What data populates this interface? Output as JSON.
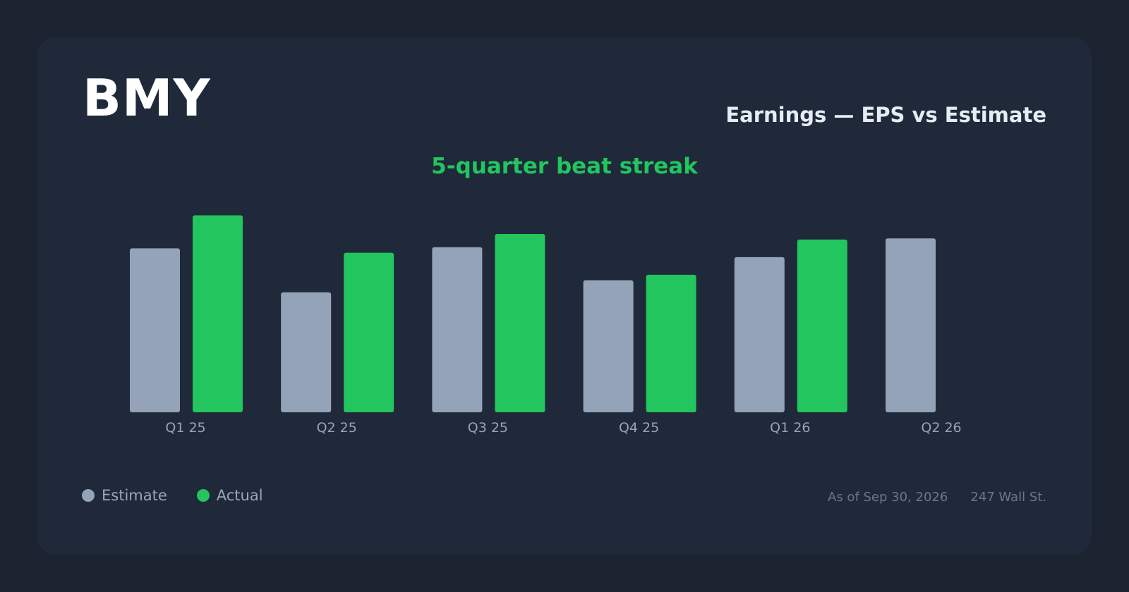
{
  "header": {
    "ticker": "BMY",
    "title": "Earnings — EPS vs Estimate",
    "subtitle": "5-quarter beat streak"
  },
  "colors": {
    "estimate": "#94a3b8",
    "actual": "#22c55e",
    "background": "#1b2230",
    "card": "#1f293a"
  },
  "legend": {
    "estimate_label": "Estimate",
    "actual_label": "Actual"
  },
  "footer": {
    "as_of": "As of Sep 30, 2026",
    "source": "247 Wall St."
  },
  "chart_data": {
    "type": "bar",
    "title": "Earnings — EPS vs Estimate",
    "subtitle": "5-quarter beat streak",
    "categories": [
      "Q1 25",
      "Q2 25",
      "Q3 25",
      "Q4 25",
      "Q1 26",
      "Q2 26"
    ],
    "series": [
      {
        "name": "Estimate",
        "color": "#94a3b8",
        "values": [
          1.49,
          1.09,
          1.5,
          1.2,
          1.41,
          1.58
        ]
      },
      {
        "name": "Actual",
        "color": "#22c55e",
        "values": [
          1.79,
          1.45,
          1.62,
          1.25,
          1.57,
          null
        ]
      }
    ],
    "ylim": [
      0,
      1.87
    ],
    "grid": false,
    "legend_position": "bottom-left"
  }
}
